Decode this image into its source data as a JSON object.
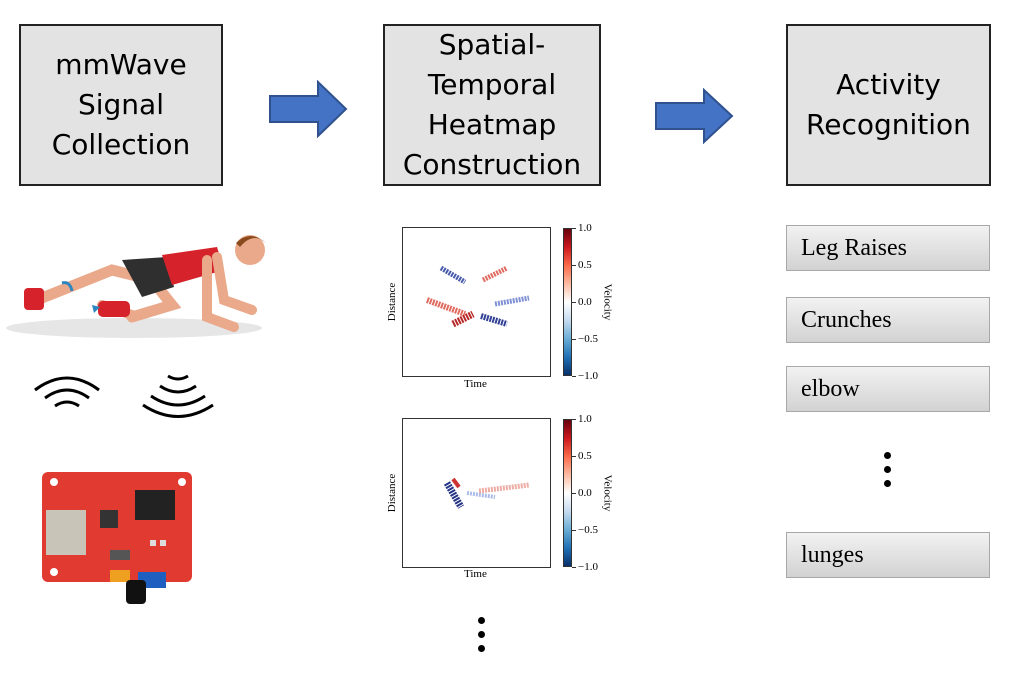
{
  "stages": [
    {
      "lines": [
        "mmWave",
        "Signal",
        "Collection"
      ]
    },
    {
      "lines": [
        "Spatial-",
        "Temporal",
        "Heatmap",
        "Construction"
      ]
    },
    {
      "lines": [
        "Activity",
        "Recognition"
      ]
    }
  ],
  "heatmaps": [
    {
      "xlabel": "Time",
      "ylabel": "Distance",
      "cbar_label": "Velocity",
      "ticks": [
        "1.0",
        "0.5",
        "0.0",
        "−0.5",
        "−1.0"
      ]
    },
    {
      "xlabel": "Time",
      "ylabel": "Distance",
      "cbar_label": "Velocity",
      "ticks": [
        "1.0",
        "0.5",
        "0.0",
        "−0.5",
        "−1.0"
      ]
    }
  ],
  "activities": [
    "Leg Raises",
    "Crunches",
    "elbow",
    "lunges"
  ],
  "colors": {
    "arrow": "#4472c4",
    "arrow_border": "#2f528f",
    "box_fill": "#e3e3e3",
    "positive": "#cb181d",
    "negative": "#08306b"
  }
}
